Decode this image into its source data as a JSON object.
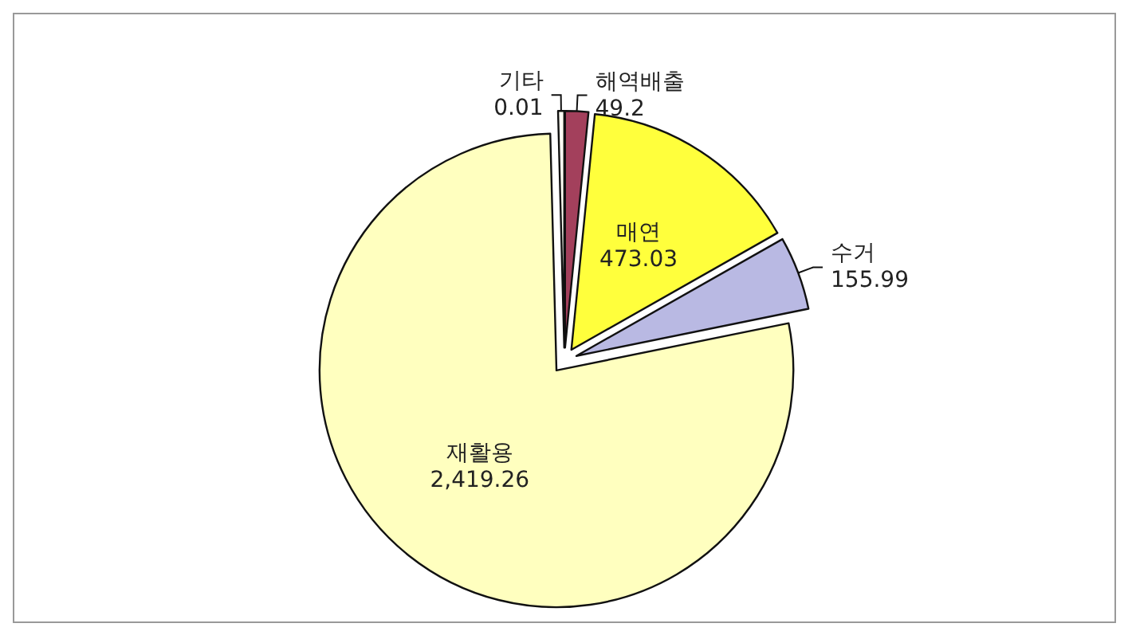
{
  "chart_data": {
    "type": "pie",
    "categories": [
      "해역배출",
      "매연",
      "수거",
      "재활용",
      "기타"
    ],
    "values": [
      49.2,
      473.03,
      155.99,
      2419.26,
      0.01
    ],
    "colors": [
      "#a3405c",
      "#ffff3c",
      "#b9b9e3",
      "#ffffbf",
      "#fffff5"
    ],
    "value_labels": [
      "49.2",
      "473.03",
      "155.99",
      "2,419.26",
      "0.01"
    ]
  }
}
